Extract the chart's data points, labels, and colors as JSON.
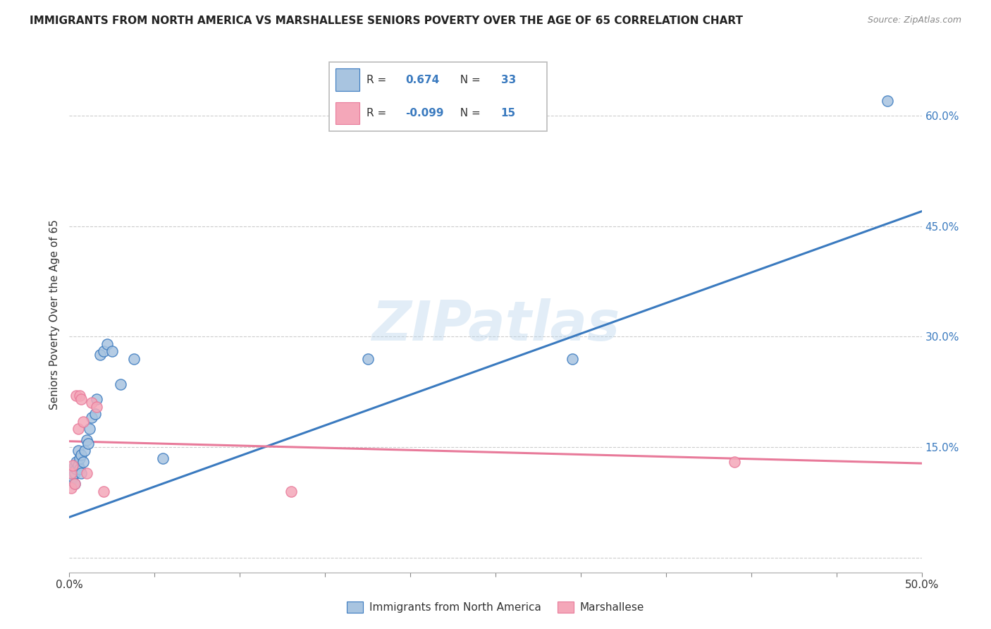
{
  "title": "IMMIGRANTS FROM NORTH AMERICA VS MARSHALLESE SENIORS POVERTY OVER THE AGE OF 65 CORRELATION CHART",
  "source": "Source: ZipAtlas.com",
  "ylabel": "Seniors Poverty Over the Age of 65",
  "xlim": [
    0.0,
    0.5
  ],
  "ylim": [
    -0.02,
    0.68
  ],
  "yticks": [
    0.0,
    0.15,
    0.3,
    0.45,
    0.6
  ],
  "ytick_labels": [
    "",
    "15.0%",
    "30.0%",
    "45.0%",
    "60.0%"
  ],
  "blue_R": 0.674,
  "blue_N": 33,
  "pink_R": -0.099,
  "pink_N": 15,
  "blue_color": "#a8c4e0",
  "pink_color": "#f4a7b9",
  "blue_line_color": "#3a7abf",
  "pink_line_color": "#e87a9a",
  "watermark": "ZIPatlas",
  "blue_points_x": [
    0.001,
    0.001,
    0.002,
    0.002,
    0.003,
    0.003,
    0.003,
    0.004,
    0.004,
    0.005,
    0.005,
    0.006,
    0.006,
    0.007,
    0.007,
    0.008,
    0.009,
    0.01,
    0.011,
    0.012,
    0.013,
    0.015,
    0.016,
    0.018,
    0.02,
    0.022,
    0.025,
    0.03,
    0.038,
    0.055,
    0.175,
    0.295,
    0.48
  ],
  "blue_points_y": [
    0.115,
    0.105,
    0.12,
    0.11,
    0.125,
    0.115,
    0.1,
    0.12,
    0.13,
    0.145,
    0.125,
    0.12,
    0.135,
    0.14,
    0.115,
    0.13,
    0.145,
    0.16,
    0.155,
    0.175,
    0.19,
    0.195,
    0.215,
    0.275,
    0.28,
    0.29,
    0.28,
    0.235,
    0.27,
    0.135,
    0.27,
    0.27,
    0.62
  ],
  "pink_points_x": [
    0.001,
    0.001,
    0.002,
    0.003,
    0.004,
    0.005,
    0.006,
    0.007,
    0.008,
    0.01,
    0.013,
    0.016,
    0.02,
    0.13,
    0.39
  ],
  "pink_points_y": [
    0.115,
    0.095,
    0.125,
    0.1,
    0.22,
    0.175,
    0.22,
    0.215,
    0.185,
    0.115,
    0.21,
    0.205,
    0.09,
    0.09,
    0.13
  ],
  "blue_line_x0": 0.0,
  "blue_line_y0": 0.055,
  "blue_line_x1": 0.5,
  "blue_line_y1": 0.47,
  "pink_line_x0": 0.0,
  "pink_line_y0": 0.158,
  "pink_line_x1": 0.5,
  "pink_line_y1": 0.128,
  "blue_scatter_size": 120,
  "pink_scatter_size": 120,
  "background_color": "#ffffff",
  "grid_color": "#cccccc"
}
